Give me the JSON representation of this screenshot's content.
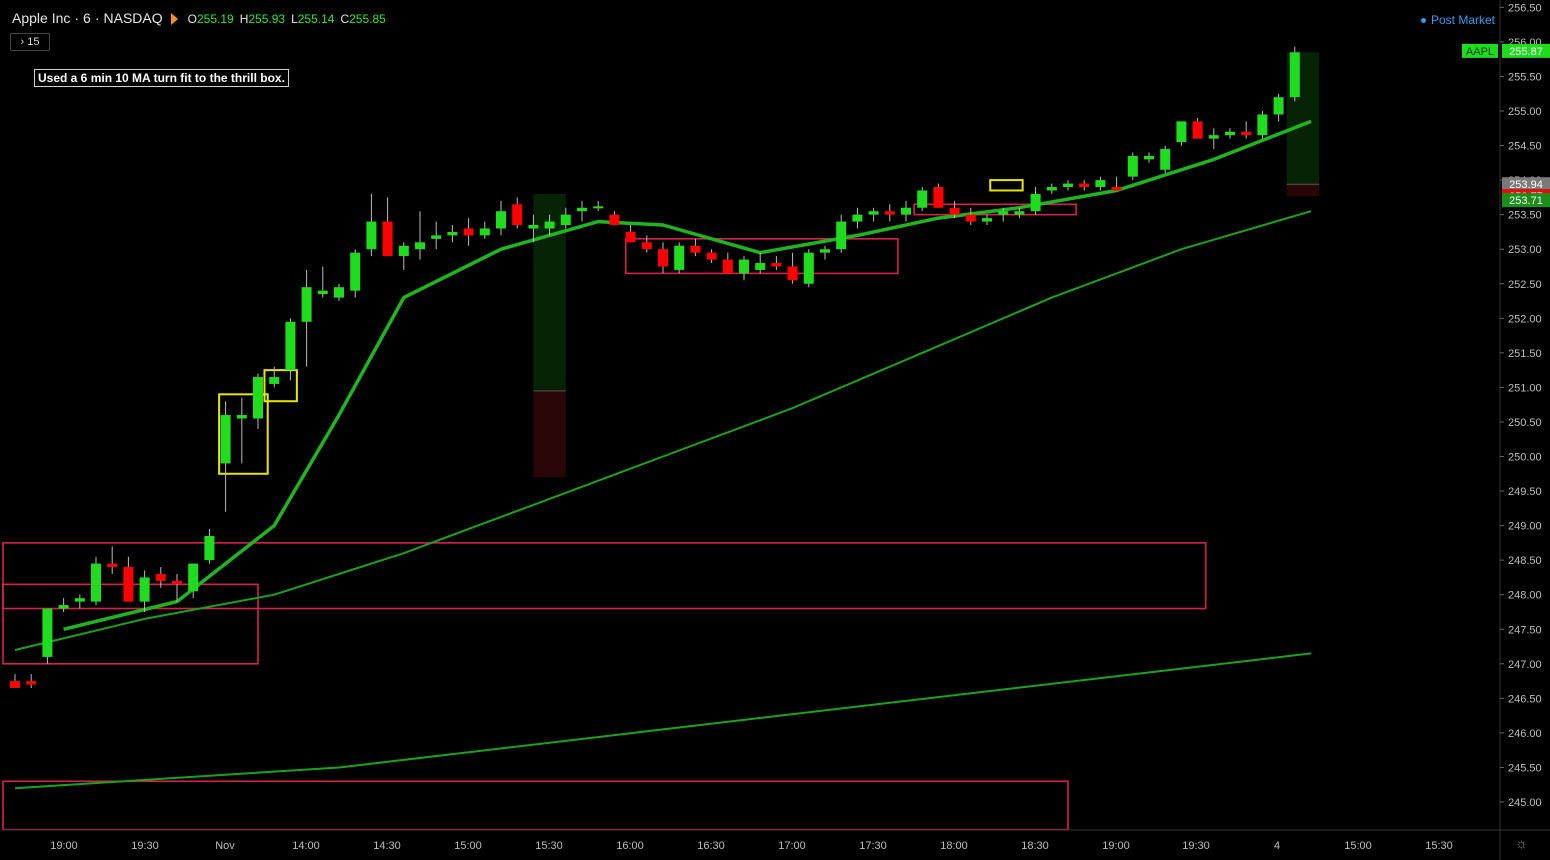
{
  "header": {
    "symbol": "Apple Inc",
    "interval": "6",
    "exchange": "NASDAQ",
    "ohlc": [
      {
        "k": "O",
        "v": "255.19"
      },
      {
        "k": "H",
        "v": "255.93"
      },
      {
        "k": "L",
        "v": "255.14"
      },
      {
        "k": "C",
        "v": "255.85"
      }
    ]
  },
  "interval_button": "› 15",
  "annotation": "Used a 6 min 10 MA turn fit to the thrill box.",
  "post_market": "Post Market",
  "colors": {
    "up": "#1fdc1f",
    "down": "#ff0000",
    "ma_fast": "#1fb51f",
    "ma_slow": "#1aa31a",
    "box_red": "#d6204e",
    "box_yellow": "#e6e600"
  },
  "chart_data": {
    "type": "candlestick",
    "y_ticks": [
      "245.00",
      "245.50",
      "246.00",
      "246.50",
      "247.00",
      "247.50",
      "248.00",
      "248.50",
      "249.00",
      "249.50",
      "250.00",
      "250.50",
      "251.00",
      "251.50",
      "252.00",
      "252.50",
      "253.00",
      "253.50",
      "254.00",
      "254.50",
      "255.00",
      "255.50",
      "256.00",
      "256.50"
    ],
    "x_ticks": [
      "19:00",
      "19:30",
      "Nov",
      "14:00",
      "14:30",
      "15:00",
      "15:30",
      "16:00",
      "16:30",
      "17:00",
      "17:30",
      "18:00",
      "18:30",
      "19:00",
      "19:30",
      "4",
      "15:00",
      "15:30"
    ],
    "price_labels": [
      {
        "text": "AAPL",
        "value": 255.87,
        "color": "#1fdc1f"
      },
      {
        "text": "255.87",
        "value": 255.87,
        "color": "#1fdc1f"
      },
      {
        "text": "253.94",
        "value": 253.94,
        "color": "#7a7a7a"
      },
      {
        "text": "253.77",
        "value": 253.77,
        "color": "#e01010"
      },
      {
        "text": "253.71",
        "value": 253.71,
        "color": "#1a8f1a"
      }
    ],
    "candles": [
      [
        246.75,
        246.85,
        246.65,
        246.65
      ],
      [
        246.75,
        246.85,
        246.65,
        246.7
      ],
      [
        247.1,
        247.8,
        247.0,
        247.8
      ],
      [
        247.8,
        247.95,
        247.75,
        247.85
      ],
      [
        247.9,
        248.0,
        247.8,
        247.95
      ],
      [
        247.9,
        248.55,
        247.85,
        248.45
      ],
      [
        248.45,
        248.7,
        248.3,
        248.4
      ],
      [
        248.4,
        248.55,
        247.9,
        247.9
      ],
      [
        247.9,
        248.35,
        247.75,
        248.25
      ],
      [
        248.3,
        248.4,
        248.1,
        248.2
      ],
      [
        248.2,
        248.3,
        247.9,
        248.15
      ],
      [
        248.05,
        248.45,
        247.95,
        248.45
      ],
      [
        248.5,
        248.95,
        248.45,
        248.85
      ],
      [
        249.9,
        250.8,
        249.2,
        250.6
      ],
      [
        250.55,
        250.85,
        249.9,
        250.6
      ],
      [
        250.55,
        251.2,
        250.4,
        251.15
      ],
      [
        251.05,
        251.3,
        251.0,
        251.15
      ],
      [
        251.25,
        252.0,
        251.1,
        251.95
      ],
      [
        251.95,
        252.7,
        251.3,
        252.45
      ],
      [
        252.35,
        252.75,
        252.3,
        252.4
      ],
      [
        252.3,
        252.5,
        252.25,
        252.45
      ],
      [
        252.4,
        253.0,
        252.3,
        252.95
      ],
      [
        253.0,
        253.8,
        252.9,
        253.4
      ],
      [
        253.4,
        253.75,
        252.9,
        252.9
      ],
      [
        252.9,
        253.1,
        252.7,
        253.05
      ],
      [
        253.0,
        253.55,
        252.85,
        253.1
      ],
      [
        253.15,
        253.4,
        253.0,
        253.2
      ],
      [
        253.2,
        253.35,
        253.1,
        253.25
      ],
      [
        253.3,
        253.45,
        253.05,
        253.2
      ],
      [
        253.2,
        253.4,
        253.15,
        253.3
      ],
      [
        253.3,
        253.7,
        253.2,
        253.55
      ],
      [
        253.65,
        253.75,
        253.3,
        253.35
      ],
      [
        253.3,
        253.5,
        253.1,
        253.35
      ],
      [
        253.3,
        253.5,
        253.2,
        253.4
      ],
      [
        253.35,
        253.6,
        253.3,
        253.5
      ],
      [
        253.55,
        253.7,
        253.4,
        253.6
      ],
      [
        253.6,
        253.7,
        253.55,
        253.62
      ],
      [
        253.5,
        253.55,
        253.4,
        253.35
      ],
      [
        253.25,
        253.35,
        253.1,
        253.1
      ],
      [
        253.1,
        253.2,
        252.95,
        253.0
      ],
      [
        253.0,
        253.1,
        252.65,
        252.75
      ],
      [
        252.7,
        253.1,
        252.65,
        253.05
      ],
      [
        253.05,
        253.15,
        252.9,
        252.95
      ],
      [
        252.95,
        253.0,
        252.8,
        252.85
      ],
      [
        252.85,
        252.95,
        252.65,
        252.65
      ],
      [
        252.65,
        252.9,
        252.55,
        252.85
      ],
      [
        252.7,
        252.95,
        252.65,
        252.8
      ],
      [
        252.8,
        252.9,
        252.7,
        252.75
      ],
      [
        252.75,
        252.95,
        252.5,
        252.55
      ],
      [
        252.5,
        253.0,
        252.45,
        252.95
      ],
      [
        252.95,
        253.05,
        252.85,
        253.0
      ],
      [
        253.0,
        253.5,
        252.95,
        253.4
      ],
      [
        253.4,
        253.6,
        253.3,
        253.5
      ],
      [
        253.5,
        253.6,
        253.4,
        253.55
      ],
      [
        253.55,
        253.65,
        253.4,
        253.5
      ],
      [
        253.5,
        253.7,
        253.4,
        253.6
      ],
      [
        253.6,
        253.9,
        253.55,
        253.85
      ],
      [
        253.9,
        253.95,
        253.6,
        253.6
      ],
      [
        253.6,
        253.7,
        253.45,
        253.5
      ],
      [
        253.5,
        253.6,
        253.35,
        253.4
      ],
      [
        253.4,
        253.5,
        253.35,
        253.45
      ],
      [
        253.5,
        253.6,
        253.4,
        253.55
      ],
      [
        253.5,
        253.6,
        253.45,
        253.55
      ],
      [
        253.55,
        253.9,
        253.5,
        253.8
      ],
      [
        253.85,
        253.95,
        253.8,
        253.9
      ],
      [
        253.9,
        254.0,
        253.85,
        253.95
      ],
      [
        253.95,
        254.0,
        253.85,
        253.9
      ],
      [
        253.9,
        254.05,
        253.85,
        254.0
      ],
      [
        253.9,
        254.05,
        253.85,
        253.85
      ],
      [
        254.05,
        254.4,
        254.0,
        254.35
      ],
      [
        254.3,
        254.4,
        254.25,
        254.35
      ],
      [
        254.15,
        254.5,
        254.1,
        254.45
      ],
      [
        254.55,
        254.85,
        254.5,
        254.85
      ],
      [
        254.85,
        254.9,
        254.6,
        254.6
      ],
      [
        254.6,
        254.75,
        254.45,
        254.65
      ],
      [
        254.65,
        254.75,
        254.6,
        254.7
      ],
      [
        254.7,
        254.85,
        254.6,
        254.65
      ],
      [
        254.65,
        255.0,
        254.6,
        254.95
      ],
      [
        254.95,
        255.25,
        254.85,
        255.2
      ],
      [
        255.2,
        255.93,
        255.14,
        255.85
      ]
    ],
    "ma_fast": [
      [
        3,
        247.5
      ],
      [
        10,
        247.9
      ],
      [
        16,
        249.0
      ],
      [
        20,
        250.6
      ],
      [
        24,
        252.3
      ],
      [
        30,
        253.0
      ],
      [
        36,
        253.4
      ],
      [
        40,
        253.35
      ],
      [
        46,
        252.95
      ],
      [
        52,
        253.2
      ],
      [
        57,
        253.45
      ],
      [
        62,
        253.6
      ],
      [
        68,
        253.85
      ],
      [
        74,
        254.3
      ],
      [
        80,
        254.85
      ]
    ],
    "ma_mid": [
      [
        0,
        247.2
      ],
      [
        8,
        247.65
      ],
      [
        16,
        248.0
      ],
      [
        24,
        248.6
      ],
      [
        32,
        249.3
      ],
      [
        40,
        250.0
      ],
      [
        48,
        250.7
      ],
      [
        56,
        251.5
      ],
      [
        64,
        252.3
      ],
      [
        72,
        253.0
      ],
      [
        80,
        253.55
      ]
    ],
    "ma_slow": [
      [
        0,
        245.2
      ],
      [
        20,
        245.5
      ],
      [
        40,
        246.05
      ],
      [
        60,
        246.6
      ],
      [
        80,
        247.15
      ]
    ],
    "red_boxes": [
      {
        "from": -3,
        "to": 15,
        "low": 247.0,
        "high": 248.15
      },
      {
        "from": -3,
        "to": 73.5,
        "low": 247.8,
        "high": 248.75
      },
      {
        "from": 37.7,
        "to": 54.5,
        "low": 252.65,
        "high": 253.15
      },
      {
        "from": 55.5,
        "to": 65.5,
        "low": 253.5,
        "high": 253.65
      },
      {
        "from": -3,
        "to": 65,
        "low": 244.6,
        "high": 245.3
      }
    ],
    "yellow_boxes": [
      {
        "from": 12.6,
        "to": 15.6,
        "low": 249.75,
        "high": 250.9
      },
      {
        "from": 15.4,
        "to": 17.4,
        "low": 250.8,
        "high": 251.25
      },
      {
        "from": 60.2,
        "to": 62.2,
        "low": 253.85,
        "high": 254.0
      }
    ],
    "position_boxes": [
      {
        "from": 32,
        "to": 34,
        "top": 253.8,
        "mid": 250.95,
        "bottom": 249.7
      },
      {
        "from": 78.5,
        "to": 80.5,
        "top": 255.85,
        "mid": 253.94,
        "bottom": 253.77
      }
    ]
  }
}
